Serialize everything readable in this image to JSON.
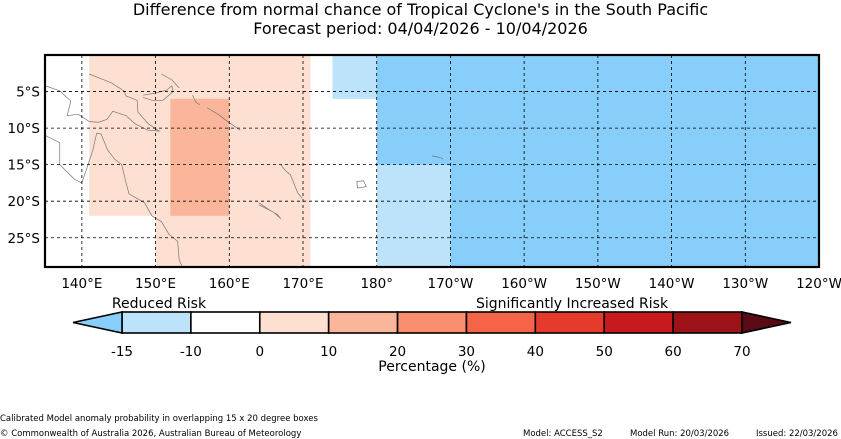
{
  "chart_data": {
    "type": "heatmap",
    "title": "Difference from normal chance of Tropical Cyclone's in the South Pacific",
    "subtitle": "Forecast period: 04/04/2026 - 10/04/2026",
    "x_axis": {
      "range_deg_east": [
        135,
        240
      ],
      "ticks": [
        140,
        150,
        160,
        170,
        180,
        190,
        200,
        210,
        220,
        230,
        240
      ],
      "tick_labels": [
        "140°E",
        "150°E",
        "160°E",
        "170°E",
        "180°",
        "170°W",
        "160°W",
        "150°W",
        "140°W",
        "130°W",
        "120°W"
      ]
    },
    "y_axis": {
      "range_deg_lat": [
        -29,
        0
      ],
      "ticks": [
        -5,
        -10,
        -15,
        -20,
        -25
      ],
      "tick_labels": [
        "5°S",
        "10°S",
        "15°S",
        "20°S",
        "25°S"
      ]
    },
    "grid": true,
    "anomaly_boxes": [
      {
        "lon": [
          141,
          171
        ],
        "lat": [
          -22,
          0
        ],
        "value": 5
      },
      {
        "lon": [
          150,
          171
        ],
        "lat": [
          -29,
          0
        ],
        "value": 5
      },
      {
        "lon": [
          154,
          170
        ],
        "lat": [
          -29,
          -6
        ],
        "value": 5
      },
      {
        "lon": [
          152,
          160
        ],
        "lat": [
          -22,
          -6
        ],
        "value": 15
      },
      {
        "lon": [
          174,
          240
        ],
        "lat": [
          -6,
          0
        ],
        "value": -12
      },
      {
        "lon": [
          180,
          240
        ],
        "lat": [
          -29,
          0
        ],
        "value": -12
      },
      {
        "lon": [
          190,
          240
        ],
        "lat": [
          -29,
          0
        ],
        "value": -17
      },
      {
        "lon": [
          180,
          240
        ],
        "lat": [
          -15,
          0
        ],
        "value": -17
      }
    ],
    "colorbar": {
      "label": "Percentage (%)",
      "left_annotation": "Reduced Risk",
      "right_annotation": "Significantly Increased Risk",
      "tick_values": [
        -15,
        -10,
        0,
        10,
        20,
        30,
        40,
        50,
        60,
        70
      ],
      "tick_labels": [
        "-15",
        "-10",
        "0",
        "10",
        "20",
        "30",
        "40",
        "50",
        "60",
        "70"
      ],
      "extend_under_color": "#87cefa",
      "extend_over_color": "#5a0a14",
      "bins": [
        {
          "from": -15,
          "to": -10,
          "color": "#bde3fa"
        },
        {
          "from": -10,
          "to": 0,
          "color": "#ffffff"
        },
        {
          "from": 0,
          "to": 10,
          "color": "#fde0d2"
        },
        {
          "from": 10,
          "to": 20,
          "color": "#fbb59a"
        },
        {
          "from": 20,
          "to": 30,
          "color": "#f88e6d"
        },
        {
          "from": 30,
          "to": 40,
          "color": "#f56446"
        },
        {
          "from": 40,
          "to": 50,
          "color": "#e53a2c"
        },
        {
          "from": 50,
          "to": 60,
          "color": "#c8191e"
        },
        {
          "from": 60,
          "to": 70,
          "color": "#9d1118"
        }
      ]
    }
  },
  "footer": {
    "note": "Calibrated Model anomaly probability in overlapping 15 x 20 degree boxes",
    "copyright": "© Commonwealth of Australia 2026, Australian Bureau of Meteorology",
    "model": "Model: ACCESS_S2",
    "model_run": "Model Run: 20/03/2026",
    "issued": "Issued: 22/03/2026"
  }
}
